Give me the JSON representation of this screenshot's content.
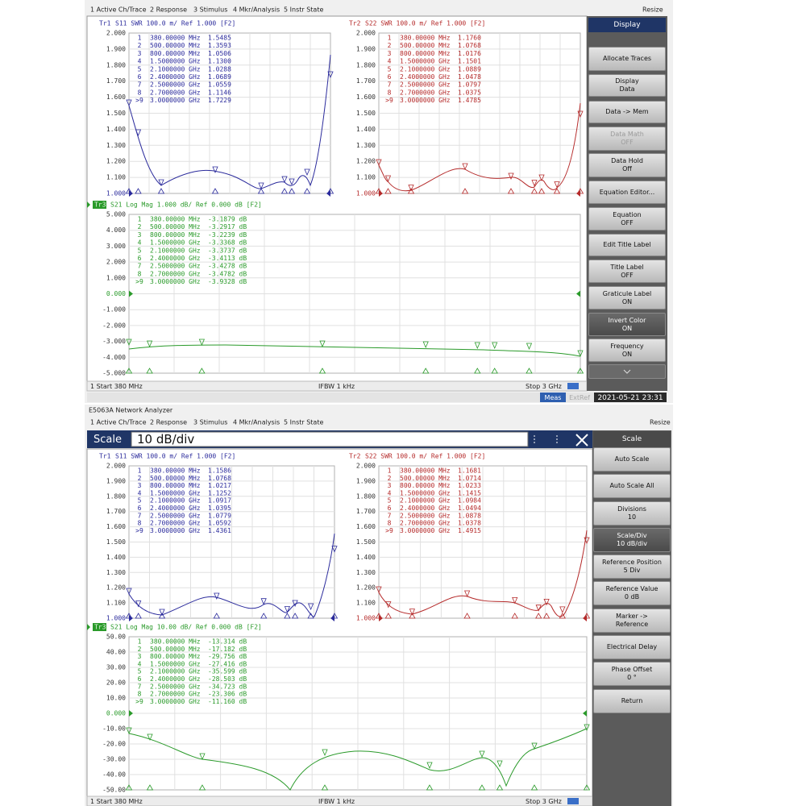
{
  "screens": [
    {
      "menu": [
        "1 Active Ch/Trace",
        "2 Response",
        "3 Stimulus",
        "4 Mkr/Analysis",
        "5 Instr State"
      ],
      "resize": "Resize",
      "traces": [
        {
          "id": "Tr1",
          "label": "S11 SWR 100.0 m/ Ref 1.000 [F2]",
          "yticks": [
            "2.000",
            "1.900",
            "1.800",
            "1.700",
            "1.600",
            "1.500",
            "1.400",
            "1.300",
            "1.200",
            "1.100",
            "1.000"
          ],
          "markers": [
            [
              "1",
              "380.00000 MHz",
              "1.5485"
            ],
            [
              "2",
              "500.00000 MHz",
              "1.3593"
            ],
            [
              "3",
              "800.00000 MHz",
              "1.0506"
            ],
            [
              "4",
              "1.5000000 GHz",
              "1.1300"
            ],
            [
              "5",
              "2.1000000 GHz",
              "1.0288"
            ],
            [
              "6",
              "2.4000000 GHz",
              "1.0689"
            ],
            [
              "7",
              "2.5000000 GHz",
              "1.0559"
            ],
            [
              "8",
              "2.7000000 GHz",
              "1.1146"
            ],
            [
              ">9",
              "3.0000000 GHz",
              "1.7229"
            ]
          ]
        },
        {
          "id": "Tr2",
          "label": "S22 SWR 100.0 m/ Ref 1.000 [F2]",
          "yticks": [
            "2.000",
            "1.900",
            "1.800",
            "1.700",
            "1.600",
            "1.500",
            "1.400",
            "1.300",
            "1.200",
            "1.100",
            "1.000"
          ],
          "markers": [
            [
              "1",
              "380.00000 MHz",
              "1.1760"
            ],
            [
              "2",
              "500.00000 MHz",
              "1.0768"
            ],
            [
              "3",
              "800.00000 MHz",
              "1.0176"
            ],
            [
              "4",
              "1.5000000 GHz",
              "1.1501"
            ],
            [
              "5",
              "2.1000000 GHz",
              "1.0889"
            ],
            [
              "6",
              "2.4000000 GHz",
              "1.0478"
            ],
            [
              "7",
              "2.5000000 GHz",
              "1.0797"
            ],
            [
              "8",
              "2.7000000 GHz",
              "1.0375"
            ],
            [
              ">9",
              "3.0000000 GHz",
              "1.4785"
            ]
          ]
        },
        {
          "id": "Tr3",
          "label": "S21 Log Mag 1.000 dB/ Ref 0.000 dB [F2]",
          "yticks": [
            "5.000",
            "4.000",
            "3.000",
            "2.000",
            "1.000",
            "0.000",
            "-1.000",
            "-2.000",
            "-3.000",
            "-4.000",
            "-5.000"
          ],
          "markers": [
            [
              "1",
              "380.00000 MHz",
              "-3.1879 dB"
            ],
            [
              "2",
              "500.00000 MHz",
              "-3.2917 dB"
            ],
            [
              "3",
              "800.00000 MHz",
              "-3.2239 dB"
            ],
            [
              "4",
              "1.5000000 GHz",
              "-3.3368 dB"
            ],
            [
              "5",
              "2.1000000 GHz",
              "-3.3737 dB"
            ],
            [
              "6",
              "2.4000000 GHz",
              "-3.4113 dB"
            ],
            [
              "7",
              "2.5000000 GHz",
              "-3.4278 dB"
            ],
            [
              "8",
              "2.7000000 GHz",
              "-3.4782 dB"
            ],
            [
              ">9",
              "3.0000000 GHz",
              "-3.9328 dB"
            ]
          ]
        }
      ],
      "status": [
        "1 Start 380 MHz",
        "IFBW 1 kHz",
        "Stop 3 GHz"
      ],
      "softkeys": {
        "header": "Display",
        "keys": [
          {
            "label": "Allocate Traces"
          },
          {
            "label": "Display",
            "value": "Data"
          },
          {
            "label": "Data -> Mem"
          },
          {
            "label": "Data Math",
            "value": "OFF"
          },
          {
            "label": "Data Hold",
            "value": "Off"
          },
          {
            "label": "Equation Editor..."
          },
          {
            "label": "Equation",
            "value": "OFF"
          },
          {
            "label": "Edit Title Label"
          },
          {
            "label": "Title Label",
            "value": "OFF"
          },
          {
            "label": "Graticule Label",
            "value": "ON"
          },
          {
            "label": "Invert Color",
            "value": "ON"
          },
          {
            "label": "Frequency",
            "value": "ON"
          }
        ]
      },
      "footer": [
        "Meas",
        "ExtRef",
        "2021-05-21 23:31"
      ]
    },
    {
      "window_title": "E5063A Network Analyzer",
      "menu": [
        "1 Active Ch/Trace",
        "2 Response",
        "3 Stimulus",
        "4 Mkr/Analysis",
        "5 Instr State"
      ],
      "resize": "Resize",
      "entry": {
        "label": "Scale",
        "value": "10 dB/div"
      },
      "traces": [
        {
          "id": "Tr1",
          "label": "S11 SWR 100.0 m/ Ref 1.000 [F2]",
          "yticks": [
            "2.000",
            "1.900",
            "1.800",
            "1.700",
            "1.600",
            "1.500",
            "1.400",
            "1.300",
            "1.200",
            "1.100",
            "1.000"
          ],
          "markers": [
            [
              "1",
              "380.00000 MHz",
              "1.1586"
            ],
            [
              "2",
              "500.00000 MHz",
              "1.0768"
            ],
            [
              "3",
              "800.00000 MHz",
              "1.0217"
            ],
            [
              "4",
              "1.5000000 GHz",
              "1.1252"
            ],
            [
              "5",
              "2.1000000 GHz",
              "1.0917"
            ],
            [
              "6",
              "2.4000000 GHz",
              "1.0395"
            ],
            [
              "7",
              "2.5000000 GHz",
              "1.0779"
            ],
            [
              "8",
              "2.7000000 GHz",
              "1.0592"
            ],
            [
              ">9",
              "3.0000000 GHz",
              "1.4361"
            ]
          ]
        },
        {
          "id": "Tr2",
          "label": "S22 SWR 100.0 m/ Ref 1.000 [F2]",
          "yticks": [
            "2.000",
            "1.900",
            "1.800",
            "1.700",
            "1.600",
            "1.500",
            "1.400",
            "1.300",
            "1.200",
            "1.100",
            "1.000"
          ],
          "markers": [
            [
              "1",
              "380.00000 MHz",
              "1.1681"
            ],
            [
              "2",
              "500.00000 MHz",
              "1.0714"
            ],
            [
              "3",
              "800.00000 MHz",
              "1.0233"
            ],
            [
              "4",
              "1.5000000 GHz",
              "1.1415"
            ],
            [
              "5",
              "2.1000000 GHz",
              "1.0984"
            ],
            [
              "6",
              "2.4000000 GHz",
              "1.0494"
            ],
            [
              "7",
              "2.5000000 GHz",
              "1.0878"
            ],
            [
              "8",
              "2.7000000 GHz",
              "1.0378"
            ],
            [
              ">9",
              "3.0000000 GHz",
              "1.4915"
            ]
          ]
        },
        {
          "id": "Tr3",
          "label": "S21 Log Mag 10.00 dB/ Ref 0.000 dB [F2]",
          "yticks": [
            "50.00",
            "40.00",
            "30.00",
            "20.00",
            "10.00",
            "0.000",
            "-10.00",
            "-20.00",
            "-30.00",
            "-40.00",
            "-50.00"
          ],
          "markers": [
            [
              "1",
              "380.00000 MHz",
              "-13.314 dB"
            ],
            [
              "2",
              "500.00000 MHz",
              "-17.182 dB"
            ],
            [
              "3",
              "800.00000 MHz",
              "-29.756 dB"
            ],
            [
              "4",
              "1.5000000 GHz",
              "-27.416 dB"
            ],
            [
              "5",
              "2.1000000 GHz",
              "-35.599 dB"
            ],
            [
              "6",
              "2.4000000 GHz",
              "-28.503 dB"
            ],
            [
              "7",
              "2.5000000 GHz",
              "-34.723 dB"
            ],
            [
              "8",
              "2.7000000 GHz",
              "-23.306 dB"
            ],
            [
              ">9",
              "3.0000000 GHz",
              "-11.160 dB"
            ]
          ]
        }
      ],
      "status": [
        "1 Start 380 MHz",
        "IFBW 1 kHz",
        "Stop 3 GHz"
      ],
      "softkeys": {
        "header": "Scale",
        "keys": [
          {
            "label": "Auto Scale"
          },
          {
            "label": "Auto Scale All"
          },
          {
            "label": "Divisions",
            "value": "10"
          },
          {
            "label": "Scale/Div",
            "value": "10 dB/div"
          },
          {
            "label": "Reference Position",
            "value": "5 Div"
          },
          {
            "label": "Reference Value",
            "value": "0 dB"
          },
          {
            "label": "Marker -> Reference"
          },
          {
            "label": "Electrical Delay"
          },
          {
            "label": "Phase Offset",
            "value": "0 °"
          },
          {
            "label": "Return"
          }
        ]
      }
    }
  ]
}
